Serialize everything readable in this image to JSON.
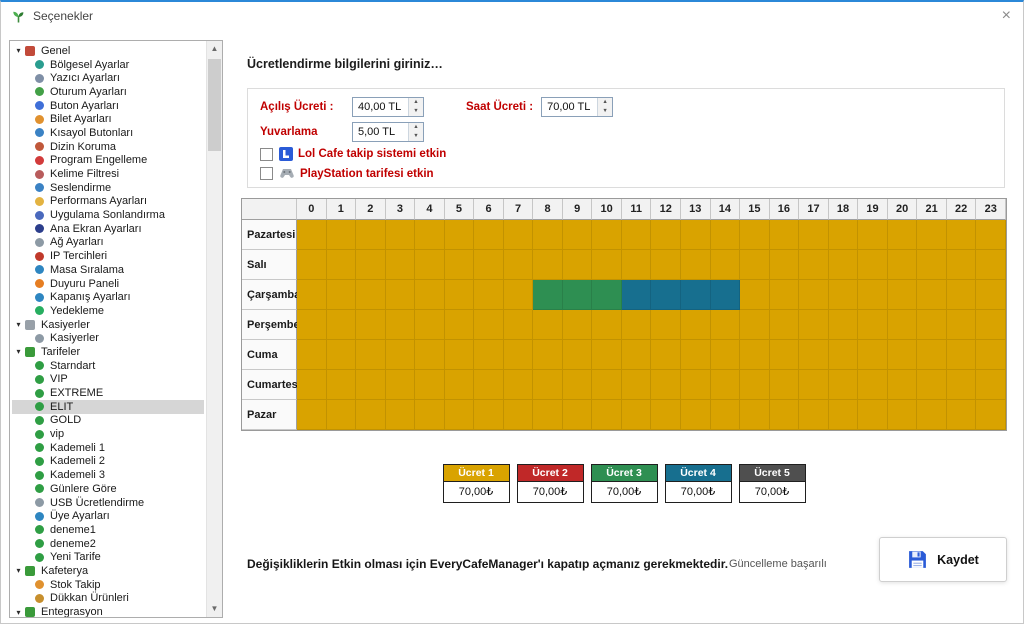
{
  "window": {
    "title": "Seçenekler",
    "close": "×"
  },
  "sidebar": {
    "groups": [
      {
        "label": "Genel",
        "expanded": true,
        "icon_color": "#c24a3a",
        "items": [
          {
            "label": "Bölgesel Ayarlar",
            "icon_color": "#2a9d8f"
          },
          {
            "label": "Yazıcı Ayarları",
            "icon_color": "#7f8fa6"
          },
          {
            "label": "Oturum Ayarları",
            "icon_color": "#43a047"
          },
          {
            "label": "Buton Ayarları",
            "icon_color": "#3f6fd8"
          },
          {
            "label": "Bilet Ayarları",
            "icon_color": "#e0912f"
          },
          {
            "label": "Kısayol Butonları",
            "icon_color": "#3b82c4"
          },
          {
            "label": "Dizin Koruma",
            "icon_color": "#c0583a"
          },
          {
            "label": "Program Engelleme",
            "icon_color": "#d23b3b"
          },
          {
            "label": "Kelime Filtresi",
            "icon_color": "#b85c5c"
          },
          {
            "label": "Seslendirme",
            "icon_color": "#3b82c4"
          },
          {
            "label": "Performans Ayarları",
            "icon_color": "#e3b341"
          },
          {
            "label": "Uygulama Sonlandırma",
            "icon_color": "#4a69bd"
          },
          {
            "label": "Ana Ekran Ayarları",
            "icon_color": "#2c3e8c"
          },
          {
            "label": "Ağ Ayarları",
            "icon_color": "#8d9aa5"
          },
          {
            "label": "IP Tercihleri",
            "icon_color": "#c0392b"
          },
          {
            "label": "Masa Sıralama",
            "icon_color": "#2e86c1"
          },
          {
            "label": "Duyuru Paneli",
            "icon_color": "#e67e22"
          },
          {
            "label": "Kapanış Ayarları",
            "icon_color": "#2e86c1"
          },
          {
            "label": "Yedekleme",
            "icon_color": "#27ae60"
          }
        ]
      },
      {
        "label": "Kasiyerler",
        "expanded": true,
        "icon_color": "#98a0a8",
        "items": [
          {
            "label": "Kasiyerler",
            "icon_color": "#8d9aa5"
          }
        ]
      },
      {
        "label": "Tarifeler",
        "expanded": true,
        "icon_color": "#3a9a3a",
        "items": [
          {
            "label": "Starndart",
            "icon_color": "#2f9e44"
          },
          {
            "label": "VIP",
            "icon_color": "#2f9e44"
          },
          {
            "label": "EXTREME",
            "icon_color": "#2f9e44"
          },
          {
            "label": "ELIT",
            "icon_color": "#2f9e44",
            "selected": true
          },
          {
            "label": "GOLD",
            "icon_color": "#2f9e44"
          },
          {
            "label": "vip",
            "icon_color": "#2f9e44"
          },
          {
            "label": "Kademeli 1",
            "icon_color": "#2f9e44"
          },
          {
            "label": "Kademeli 2",
            "icon_color": "#2f9e44"
          },
          {
            "label": "Kademeli 3",
            "icon_color": "#2f9e44"
          },
          {
            "label": "Günlere Göre",
            "icon_color": "#2f9e44"
          },
          {
            "label": "USB Ücretlendirme",
            "icon_color": "#8d9aa5"
          },
          {
            "label": "Üye Ayarları",
            "icon_color": "#2e86c1"
          },
          {
            "label": "deneme1",
            "icon_color": "#2f9e44"
          },
          {
            "label": "deneme2",
            "icon_color": "#2f9e44"
          },
          {
            "label": "Yeni Tarife",
            "icon_color": "#2f9e44"
          }
        ]
      },
      {
        "label": "Kafeterya",
        "expanded": true,
        "icon_color": "#3a9a3a",
        "items": [
          {
            "label": "Stok Takip",
            "icon_color": "#e0912f"
          },
          {
            "label": "Dükkan Ürünleri",
            "icon_color": "#c78f2d"
          }
        ]
      },
      {
        "label": "Entegrasyon",
        "expanded": true,
        "icon_color": "#3a9a3a",
        "items": []
      }
    ]
  },
  "form": {
    "title": "Ücretlendirme bilgilerini giriniz…",
    "fields": [
      {
        "label": "Açılış Ücreti :",
        "value": "40,00 TL"
      },
      {
        "label": "Saat Ücreti :",
        "value": "70,00 TL"
      },
      {
        "label": "Yuvarlama",
        "value": "5,00 TL"
      }
    ],
    "checkboxes": [
      {
        "label": "Lol Cafe takip sistemi etkin",
        "checked": false,
        "icon": "lolcafe-icon"
      },
      {
        "label": "PlayStation tarifesi etkin",
        "checked": false,
        "icon": "playstation-icon"
      }
    ]
  },
  "schedule": {
    "hours": [
      "0",
      "1",
      "2",
      "3",
      "4",
      "5",
      "6",
      "7",
      "8",
      "9",
      "10",
      "11",
      "12",
      "13",
      "14",
      "15",
      "16",
      "17",
      "18",
      "19",
      "20",
      "21",
      "22",
      "23"
    ],
    "days": [
      "Pazartesi",
      "Salı",
      "Çarşamba",
      "Perşembe",
      "Cuma",
      "Cumartesi",
      "Pazar"
    ],
    "default_tariff": "1",
    "overrides": [
      {
        "day": "Çarşamba",
        "from": 8,
        "to": 10,
        "tariff": "3"
      },
      {
        "day": "Çarşamba",
        "from": 11,
        "to": 14,
        "tariff": "4"
      }
    ],
    "tariff_colors": {
      "1": "#D9A300",
      "2": "#C02828",
      "3": "#2E8F52",
      "4": "#176F8F",
      "5": "#4F4F4F"
    }
  },
  "legend": [
    {
      "label": "Ücret 1",
      "value": "70,00₺",
      "tariff": "1"
    },
    {
      "label": "Ücret 2",
      "value": "70,00₺",
      "tariff": "2"
    },
    {
      "label": "Ücret 3",
      "value": "70,00₺",
      "tariff": "3"
    },
    {
      "label": "Ücret 4",
      "value": "70,00₺",
      "tariff": "4"
    },
    {
      "label": "Ücret 5",
      "value": "70,00₺",
      "tariff": "5"
    }
  ],
  "footer": {
    "note": "Değişikliklerin Etkin olması için EveryCafeManager'ı kapatıp açmanız gerekmektedir.",
    "status": "Güncelleme başarılı",
    "save_label": "Kaydet"
  }
}
